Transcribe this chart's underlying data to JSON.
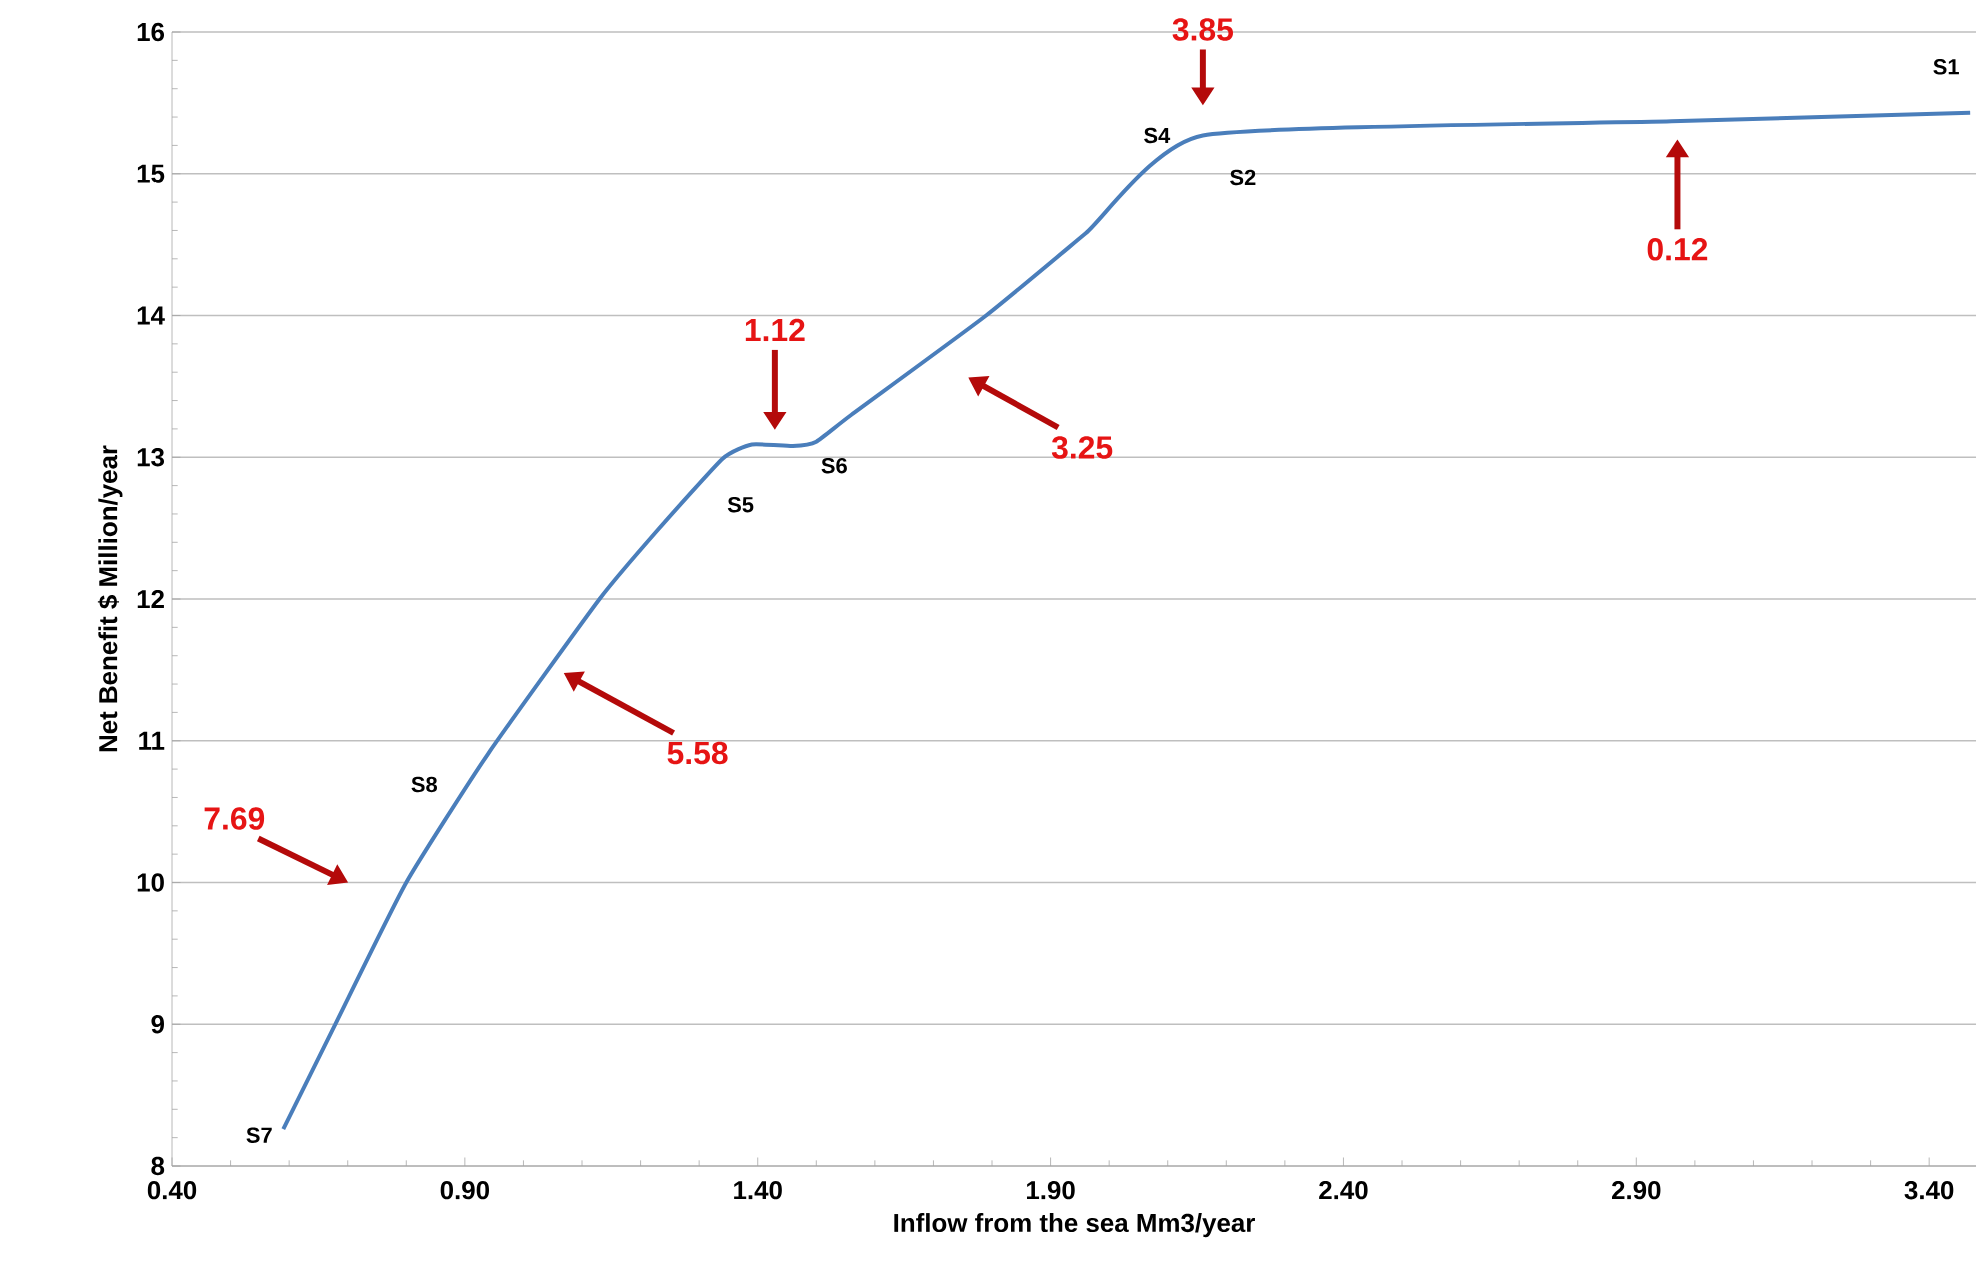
{
  "chart_data": {
    "type": "line",
    "xlabel": "Inflow from the sea Mm3/year",
    "ylabel": "Net Benefit $ Million/year",
    "xlim": [
      0.4,
      3.48
    ],
    "ylim": [
      8,
      16
    ],
    "xticks": [
      {
        "value": 0.4,
        "label": "0.40"
      },
      {
        "value": 0.9,
        "label": "0.90"
      },
      {
        "value": 1.4,
        "label": "1.40"
      },
      {
        "value": 1.9,
        "label": "1.90"
      },
      {
        "value": 2.4,
        "label": "2.40"
      },
      {
        "value": 2.9,
        "label": "2.90"
      },
      {
        "value": 3.4,
        "label": "3.40"
      }
    ],
    "yticks": [
      8,
      9,
      10,
      11,
      12,
      13,
      14,
      15,
      16
    ],
    "grid": "y",
    "marker": "none",
    "line_style": "solid",
    "series": [
      {
        "color": "#4a7ebb",
        "x": [
          0.59,
          0.68,
          0.8,
          0.94,
          1.13,
          1.23,
          1.34,
          1.39,
          1.46,
          1.5,
          1.56,
          1.79,
          1.96,
          2.16,
          2.96,
          3.47
        ],
        "values": [
          8.26,
          9.01,
          10.0,
          10.91,
          12.0,
          12.49,
          12.99,
          13.09,
          13.08,
          13.11,
          13.3,
          14.0,
          14.58,
          15.27,
          15.37,
          15.43
        ]
      }
    ],
    "annotations": [
      "7.69",
      "5.58",
      "1.12",
      "3.25",
      "3.85",
      "0.12",
      "S7",
      "S8",
      "S5",
      "S6",
      "S4",
      "S2",
      "S1"
    ]
  }
}
